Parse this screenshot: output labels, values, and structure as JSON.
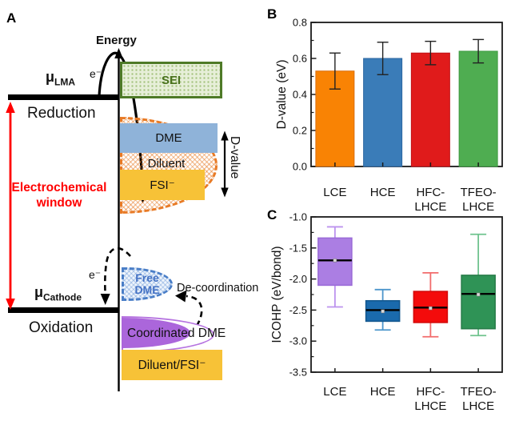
{
  "panels": {
    "a": {
      "label": "A",
      "energy_axis_label": "Energy",
      "electron_label_top": "e⁻",
      "mu_lma": {
        "symbol": "μ",
        "sub": "LMA"
      },
      "reduction_label": "Reduction",
      "window_label": [
        "Electrochemical",
        "window"
      ],
      "sei_label": "SEI",
      "dme_label": "DME",
      "diluent_label": "Diluent",
      "fsi_label": "FSI⁻",
      "dvalue_label": "D-value",
      "electron_label_bottom": "e⁻",
      "mu_cathode": {
        "symbol": "μ",
        "sub": "Cathode"
      },
      "oxidation_label": "Oxidation",
      "free_dme_label": [
        "Free",
        "DME"
      ],
      "decoordination_label": "De-coordination",
      "coordinated_dme_label": "Coordinated DME",
      "diluent_fsi_label": "Diluent/FSI⁻",
      "colors": {
        "window_red": "#FF0000",
        "sei_green": "#4E7A27",
        "dme_blue": "#8FB3D9",
        "diluent_orange": "#E87A25",
        "fsi_yellow": "#F7C237",
        "free_dme_blue": "#4472C4",
        "coordinated_purple": "#AB66DB"
      }
    },
    "b": {
      "label": "B"
    },
    "c": {
      "label": "C"
    }
  },
  "chart_data": [
    {
      "panel": "B",
      "type": "bar",
      "ylabel": "D-value (eV)",
      "ylim": [
        0.0,
        0.8
      ],
      "yticks": [
        {
          "v": 0.0,
          "label": "0.0"
        },
        {
          "v": 0.2,
          "label": "0.2"
        },
        {
          "v": 0.4,
          "label": "0.4"
        },
        {
          "v": 0.6,
          "label": "0.6"
        },
        {
          "v": 0.8,
          "label": "0.8"
        }
      ],
      "minor_tick_step": 0.1,
      "categories": [
        [
          "LCE"
        ],
        [
          "HCE"
        ],
        [
          "HFC-",
          "LHCE"
        ],
        [
          "TFEO-",
          "LHCE"
        ]
      ],
      "values": [
        0.53,
        0.6,
        0.63,
        0.64
      ],
      "errors": [
        0.1,
        0.09,
        0.065,
        0.065
      ],
      "bar_colors": [
        "#F98304",
        "#3A7CB8",
        "#E01B1B",
        "#4FAD51"
      ],
      "bar_edge_colors": [
        "#D96F10",
        "#2B66A0",
        "#C01318",
        "#3D9A41"
      ],
      "error_color": "#222222"
    },
    {
      "panel": "C",
      "type": "box",
      "ylabel": "ICOHP (eV/bond)",
      "ylim": [
        -3.5,
        -1.0
      ],
      "yticks": [
        {
          "v": -1.0,
          "label": "-1.0"
        },
        {
          "v": -1.5,
          "label": "-1.5"
        },
        {
          "v": -2.0,
          "label": "-2.0"
        },
        {
          "v": -2.5,
          "label": "-2.5"
        },
        {
          "v": -3.0,
          "label": "-3.0"
        },
        {
          "v": -3.5,
          "label": "-3.5"
        }
      ],
      "minor_tick_step": 0.25,
      "categories": [
        [
          "LCE"
        ],
        [
          "HCE"
        ],
        [
          "HFC-",
          "LHCE"
        ],
        [
          "TFEO-",
          "LHCE"
        ]
      ],
      "series": [
        {
          "name": "LCE",
          "whisker_low": -2.45,
          "q1": -2.1,
          "median": -1.7,
          "q3": -1.34,
          "whisker_high": -1.16,
          "mean": -1.7,
          "fill": "#AB7EE3",
          "edge": "#9B6CD8",
          "whisker": "#BC93EE"
        },
        {
          "name": "HCE",
          "whisker_low": -2.82,
          "q1": -2.68,
          "median": -2.5,
          "q3": -2.35,
          "whisker_high": -2.17,
          "mean": -2.52,
          "fill": "#1A6AAD",
          "edge": "#14588F",
          "whisker": "#4D96CC"
        },
        {
          "name": "HFC-LHCE",
          "whisker_low": -2.93,
          "q1": -2.7,
          "median": -2.46,
          "q3": -2.2,
          "whisker_high": -1.9,
          "mean": -2.47,
          "fill": "#F40B0B",
          "edge": "#D40A0A",
          "whisker": "#F26B6B"
        },
        {
          "name": "TFEO-LHCE",
          "whisker_low": -2.91,
          "q1": -2.8,
          "median": -2.24,
          "q3": -1.94,
          "whisker_high": -1.28,
          "mean": -2.25,
          "fill": "#2F9356",
          "edge": "#277D49",
          "whisker": "#6FC38E"
        }
      ],
      "median_color": "#000000",
      "mean_marker_color": "#D9D9D9"
    }
  ]
}
